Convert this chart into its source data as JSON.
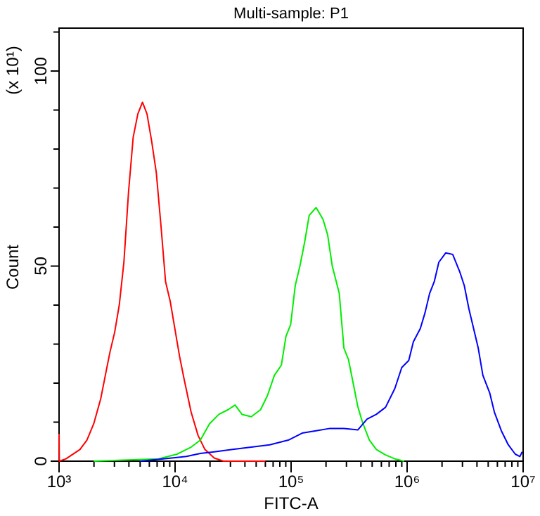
{
  "chart_data": {
    "type": "line",
    "title": "Multi-sample: P1",
    "xlabel": "FITC-A",
    "ylabel": "Count",
    "annotations": [
      "(x 10¹)"
    ],
    "log": "x",
    "grid": false,
    "marker": "none",
    "line_style": "solid",
    "xlim": [
      1000,
      10000000
    ],
    "xticks": [
      {
        "value": 1000,
        "label": "10³"
      },
      {
        "value": 2000,
        "label": null
      },
      {
        "value": 3000,
        "label": null
      },
      {
        "value": 4000,
        "label": null
      },
      {
        "value": 5000,
        "label": null
      },
      {
        "value": 6000,
        "label": null
      },
      {
        "value": 7000,
        "label": null
      },
      {
        "value": 8000,
        "label": null
      },
      {
        "value": 9000,
        "label": null
      },
      {
        "value": 10000,
        "label": "10⁴"
      },
      {
        "value": 20000,
        "label": null
      },
      {
        "value": 30000,
        "label": null
      },
      {
        "value": 40000,
        "label": null
      },
      {
        "value": 50000,
        "label": null
      },
      {
        "value": 60000,
        "label": null
      },
      {
        "value": 70000,
        "label": null
      },
      {
        "value": 80000,
        "label": null
      },
      {
        "value": 90000,
        "label": null
      },
      {
        "value": 100000,
        "label": "10⁵"
      },
      {
        "value": 200000,
        "label": null
      },
      {
        "value": 300000,
        "label": null
      },
      {
        "value": 400000,
        "label": null
      },
      {
        "value": 500000,
        "label": null
      },
      {
        "value": 600000,
        "label": null
      },
      {
        "value": 700000,
        "label": null
      },
      {
        "value": 800000,
        "label": null
      },
      {
        "value": 900000,
        "label": null
      },
      {
        "value": 1000000,
        "label": "10⁶"
      },
      {
        "value": 2000000,
        "label": null
      },
      {
        "value": 3000000,
        "label": null
      },
      {
        "value": 4000000,
        "label": null
      },
      {
        "value": 5000000,
        "label": null
      },
      {
        "value": 6000000,
        "label": null
      },
      {
        "value": 7000000,
        "label": null
      },
      {
        "value": 8000000,
        "label": null
      },
      {
        "value": 9000000,
        "label": null
      },
      {
        "value": 10000000,
        "label": "10⁷"
      }
    ],
    "ylim": [
      0,
      111
    ],
    "yticks": [
      0,
      {
        "value": 10,
        "label": null
      },
      {
        "value": 20,
        "label": null
      },
      {
        "value": 30,
        "label": null
      },
      {
        "value": 40,
        "label": null
      },
      50,
      {
        "value": 60,
        "label": null
      },
      {
        "value": 70,
        "label": null
      },
      {
        "value": 80,
        "label": null
      },
      {
        "value": 90,
        "label": null
      },
      100,
      {
        "value": 110,
        "label": null
      }
    ],
    "series": [
      {
        "color": "#ff0000",
        "x": [
          1000,
          1005,
          1148,
          1514,
          1738,
          1991,
          2286,
          2506,
          2748,
          3013,
          3303,
          3622,
          3971,
          4354,
          4775,
          5236,
          5730,
          6283,
          6887,
          7551,
          8280,
          9077,
          9954,
          10910,
          11970,
          13740,
          15780,
          18070,
          21730,
          26120,
          60000
        ],
        "values": [
          7,
          0,
          0.6,
          3,
          5.4,
          9.6,
          16,
          22,
          28,
          33,
          40,
          51,
          69,
          83,
          89,
          92,
          89,
          82,
          74,
          60.5,
          46,
          41,
          34,
          27,
          21,
          12.6,
          6.6,
          3,
          0.8,
          0,
          0
        ]
      },
      {
        "color": "#00ee00",
        "x": [
          1991,
          7210,
          10420,
          13740,
          16520,
          19820,
          23840,
          28640,
          32890,
          37750,
          45400,
          54580,
          62520,
          71790,
          82410,
          90370,
          99080,
          108600,
          119100,
          130600,
          143200,
          164400,
          188400,
          206600,
          226500,
          260100,
          285200,
          312600,
          342800,
          375800,
          412100,
          473000,
          543000,
          651600,
          783400,
          942000
        ],
        "values": [
          0,
          0.6,
          1.8,
          3.6,
          5.4,
          9.6,
          12,
          13.2,
          14.4,
          12,
          11.4,
          13.2,
          16.8,
          22,
          24.6,
          32,
          35,
          45,
          50,
          56,
          63,
          65,
          62,
          58,
          50,
          43,
          29,
          26,
          20,
          14,
          10,
          5.4,
          3,
          1.6,
          0.6,
          0
        ]
      },
      {
        "color": "#0000ff",
        "x": [
          5000,
          7908,
          12530,
          16520,
          21730,
          31410,
          45400,
          65460,
          94620,
          124700,
          164400,
          216300,
          285200,
          375800,
          451800,
          543000,
          651600,
          783400,
          899500,
          1033000,
          1132000,
          1300000,
          1426000,
          1563000,
          1714000,
          1877000,
          2155000,
          2472000,
          2838000,
          3111000,
          3411000,
          3741000,
          4102000,
          4498000,
          5164000,
          5649000,
          6486000,
          7447000,
          8551000,
          9376000,
          9817000
        ],
        "values": [
          0,
          0.6,
          1.2,
          2,
          2.4,
          3,
          3.6,
          4.2,
          5.4,
          7.2,
          7.8,
          8.4,
          8.4,
          8,
          10.8,
          12,
          13.8,
          18.6,
          24,
          25.8,
          30.6,
          34,
          38,
          43,
          46,
          51,
          53.4,
          53,
          48.6,
          45,
          39,
          34,
          29,
          22,
          17.4,
          12.6,
          7.8,
          4.2,
          1.8,
          1.2,
          2.4
        ]
      }
    ]
  }
}
